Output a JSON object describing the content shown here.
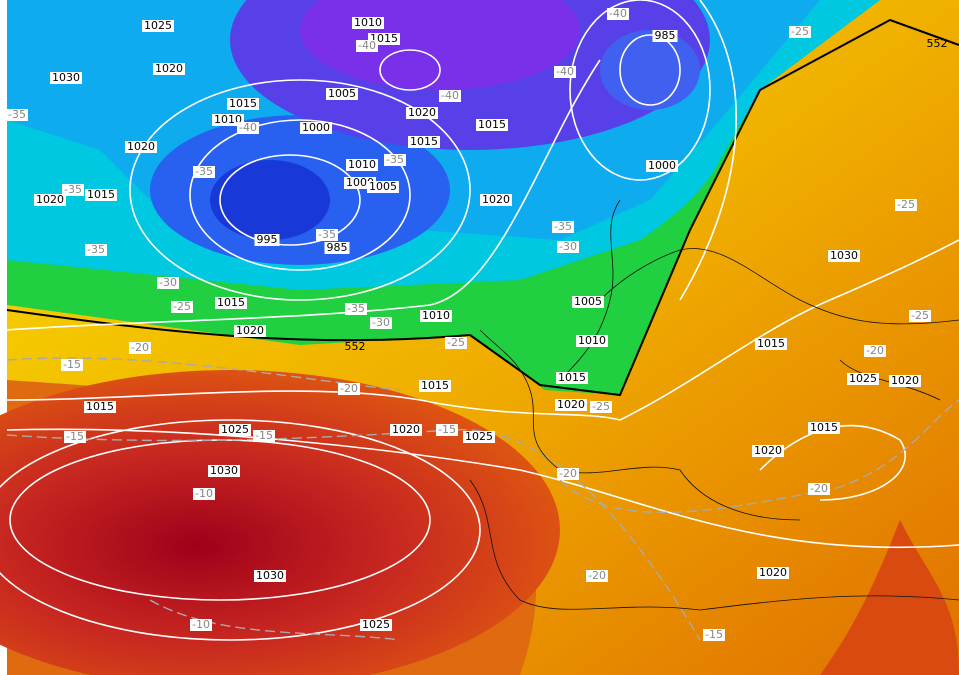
{
  "map": {
    "isobar_labels": [
      1025,
      1030,
      1020,
      1010,
      1015,
      985,
      1005,
      1015,
      1010,
      1020,
      1000,
      1015,
      1020,
      1015,
      1010,
      1000,
      1000,
      1005,
      1015,
      1020,
      1020,
      995,
      985,
      1030,
      1015,
      1005,
      1020,
      1010,
      1010,
      1015,
      1015,
      1025,
      1020,
      1015,
      1015,
      1020,
      1015,
      1025,
      1020,
      1025,
      1020,
      1030,
      1030,
      1020,
      1025
    ],
    "temperature_labels": [
      -40,
      -25,
      -40,
      -40,
      -40,
      -40,
      -35,
      -35,
      -35,
      -35,
      -25,
      -35,
      -35,
      -30,
      -35,
      -30,
      -25,
      -35,
      -30,
      -25,
      -25,
      -20,
      -20,
      -15,
      -20,
      -25,
      -15,
      -15,
      -15,
      -20,
      -10,
      -20,
      -20,
      -10,
      -15
    ],
    "height_labels": [
      552,
      552
    ]
  }
}
